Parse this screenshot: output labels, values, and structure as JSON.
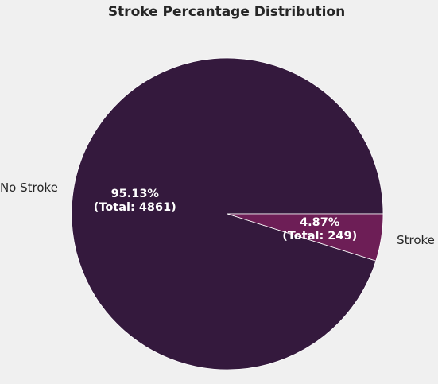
{
  "chart_data": {
    "type": "pie",
    "title": "Stroke Percantage Distribution",
    "start_angle_deg": 0,
    "direction": "counterclockwise",
    "slices": [
      {
        "label": "No Stroke",
        "percent_text": "95.13%",
        "total_text": "(Total: 4861)",
        "value": 4861,
        "color": "#34193d"
      },
      {
        "label": "Stroke",
        "percent_text": "4.87%",
        "total_text": "(Total: 249)",
        "value": 249,
        "color": "#6d1e56"
      }
    ],
    "slice_edge_color": "#ffffff",
    "legend": "none"
  }
}
